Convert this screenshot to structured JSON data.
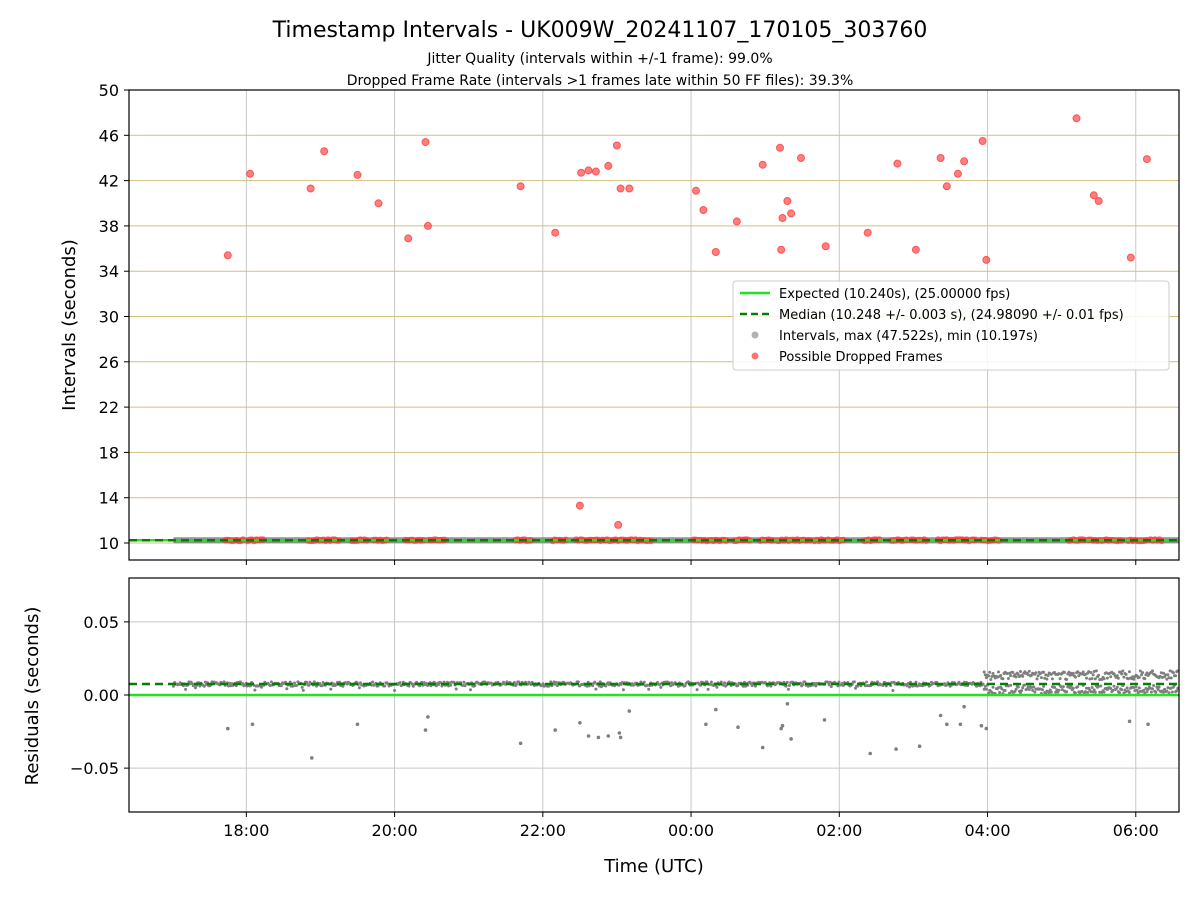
{
  "chart_data": {
    "title": "Timestamp Intervals - UK009W_20241107_170105_303760",
    "subtitle_1": "Jitter Quality (intervals within +/-1 frame): 99.0%",
    "subtitle_2": "Dropped Frame Rate (intervals >1 frames late within 50 FF files): 39.3%",
    "xlabel": "Time (UTC)",
    "x_ticks": [
      "18:00",
      "20:00",
      "22:00",
      "00:00",
      "02:00",
      "04:00",
      "06:00"
    ],
    "panels": [
      {
        "type": "scatter",
        "ylabel": "Intervals (seconds)",
        "ylim": [
          8.5,
          50
        ],
        "y_ticks": [
          "10",
          "14",
          "18",
          "22",
          "26",
          "30",
          "34",
          "38",
          "42",
          "46",
          "50"
        ],
        "grid": true,
        "legend_position": "center-right",
        "legend": [
          "Expected (10.240s), (25.00000 fps)",
          "Median (10.248 +/- 0.003 s), (24.98090 +/- 0.01 fps)",
          "Intervals, max (47.522s), min (10.197s)",
          "Possible Dropped Frames"
        ],
        "expected_line": 10.24,
        "median_line": 10.248,
        "dropped_points": [
          [
            "17:45",
            35.4
          ],
          [
            "18:03",
            42.6
          ],
          [
            "18:52",
            41.3
          ],
          [
            "19:03",
            44.6
          ],
          [
            "19:30",
            42.5
          ],
          [
            "19:47",
            40.0
          ],
          [
            "20:11",
            36.9
          ],
          [
            "20:25",
            45.4
          ],
          [
            "20:27",
            38.0
          ],
          [
            "21:42",
            41.5
          ],
          [
            "22:10",
            37.4
          ],
          [
            "22:30",
            13.3
          ],
          [
            "22:31",
            42.7
          ],
          [
            "22:37",
            42.9
          ],
          [
            "22:43",
            42.8
          ],
          [
            "22:53",
            43.3
          ],
          [
            "23:00",
            45.1
          ],
          [
            "23:01",
            11.6
          ],
          [
            "23:03",
            41.3
          ],
          [
            "23:10",
            41.3
          ],
          [
            "00:04",
            41.1
          ],
          [
            "00:10",
            39.4
          ],
          [
            "00:20",
            35.7
          ],
          [
            "00:37",
            38.4
          ],
          [
            "00:58",
            43.4
          ],
          [
            "01:12",
            44.9
          ],
          [
            "01:13",
            35.9
          ],
          [
            "01:14",
            38.7
          ],
          [
            "01:18",
            40.2
          ],
          [
            "01:21",
            39.1
          ],
          [
            "01:29",
            44.0
          ],
          [
            "01:49",
            36.2
          ],
          [
            "02:23",
            37.4
          ],
          [
            "02:47",
            43.5
          ],
          [
            "03:02",
            35.9
          ],
          [
            "03:22",
            44.0
          ],
          [
            "03:27",
            41.5
          ],
          [
            "03:36",
            42.6
          ],
          [
            "03:41",
            43.7
          ],
          [
            "03:56",
            45.5
          ],
          [
            "03:59",
            35.0
          ],
          [
            "05:12",
            47.5
          ],
          [
            "05:26",
            40.7
          ],
          [
            "05:30",
            40.2
          ],
          [
            "05:56",
            35.2
          ],
          [
            "06:09",
            43.9
          ]
        ],
        "dropped_near_baseline_ranges": [
          [
            "17:43",
            "17:58"
          ],
          [
            "18:01",
            "18:15"
          ],
          [
            "18:50",
            "19:15"
          ],
          [
            "19:25",
            "19:38"
          ],
          [
            "19:43",
            "19:55"
          ],
          [
            "20:09",
            "20:25"
          ],
          [
            "20:28",
            "20:42"
          ],
          [
            "21:38",
            "21:52"
          ],
          [
            "22:08",
            "22:20"
          ],
          [
            "22:27",
            "23:28"
          ],
          [
            "00:02",
            "00:30"
          ],
          [
            "00:35",
            "00:48"
          ],
          [
            "00:56",
            "01:08"
          ],
          [
            "01:10",
            "01:37"
          ],
          [
            "01:40",
            "01:50"
          ],
          [
            "01:51",
            "02:05"
          ],
          [
            "02:20",
            "02:33"
          ],
          [
            "02:42",
            "02:55"
          ],
          [
            "02:58",
            "03:12"
          ],
          [
            "03:20",
            "03:52"
          ],
          [
            "03:55",
            "04:10"
          ],
          [
            "05:06",
            "05:20"
          ],
          [
            "05:22",
            "05:50"
          ],
          [
            "05:54",
            "06:10"
          ],
          [
            "06:12",
            "06:22"
          ]
        ]
      },
      {
        "type": "scatter",
        "ylabel": "Residuals (seconds)",
        "ylim": [
          -0.08,
          0.08
        ],
        "y_ticks": [
          "0.05",
          "0.00",
          "−0.05"
        ],
        "grid": true,
        "expected_line": 0.0,
        "median_line": 0.0075,
        "outlier_points": [
          [
            "17:45",
            -0.023
          ],
          [
            "18:05",
            -0.02
          ],
          [
            "18:53",
            -0.043
          ],
          [
            "19:30",
            -0.02
          ],
          [
            "20:25",
            -0.024
          ],
          [
            "20:27",
            -0.015
          ],
          [
            "21:42",
            -0.033
          ],
          [
            "22:10",
            -0.024
          ],
          [
            "22:30",
            -0.019
          ],
          [
            "22:37",
            -0.028
          ],
          [
            "22:45",
            -0.029
          ],
          [
            "22:53",
            -0.028
          ],
          [
            "23:02",
            -0.026
          ],
          [
            "23:03",
            -0.029
          ],
          [
            "23:10",
            -0.011
          ],
          [
            "00:12",
            -0.02
          ],
          [
            "00:20",
            -0.01
          ],
          [
            "00:38",
            -0.022
          ],
          [
            "00:58",
            -0.036
          ],
          [
            "01:13",
            -0.023
          ],
          [
            "01:14",
            -0.021
          ],
          [
            "01:18",
            -0.006
          ],
          [
            "01:21",
            -0.03
          ],
          [
            "01:48",
            -0.017
          ],
          [
            "02:25",
            -0.04
          ],
          [
            "02:46",
            -0.037
          ],
          [
            "03:05",
            -0.035
          ],
          [
            "03:22",
            -0.014
          ],
          [
            "03:27",
            -0.02
          ],
          [
            "03:38",
            -0.02
          ],
          [
            "03:41",
            -0.008
          ],
          [
            "03:55",
            -0.021
          ],
          [
            "03:59",
            -0.023
          ],
          [
            "05:55",
            -0.018
          ],
          [
            "06:10",
            -0.02
          ]
        ]
      }
    ]
  },
  "colors": {
    "expected": "#1ee61e",
    "median": "#0a7a0a",
    "dropped": "#ff3b3b",
    "intervals": "#7f7f7f",
    "hgrid_top": "#d2bf7c",
    "grid": "#c8c8c8"
  }
}
